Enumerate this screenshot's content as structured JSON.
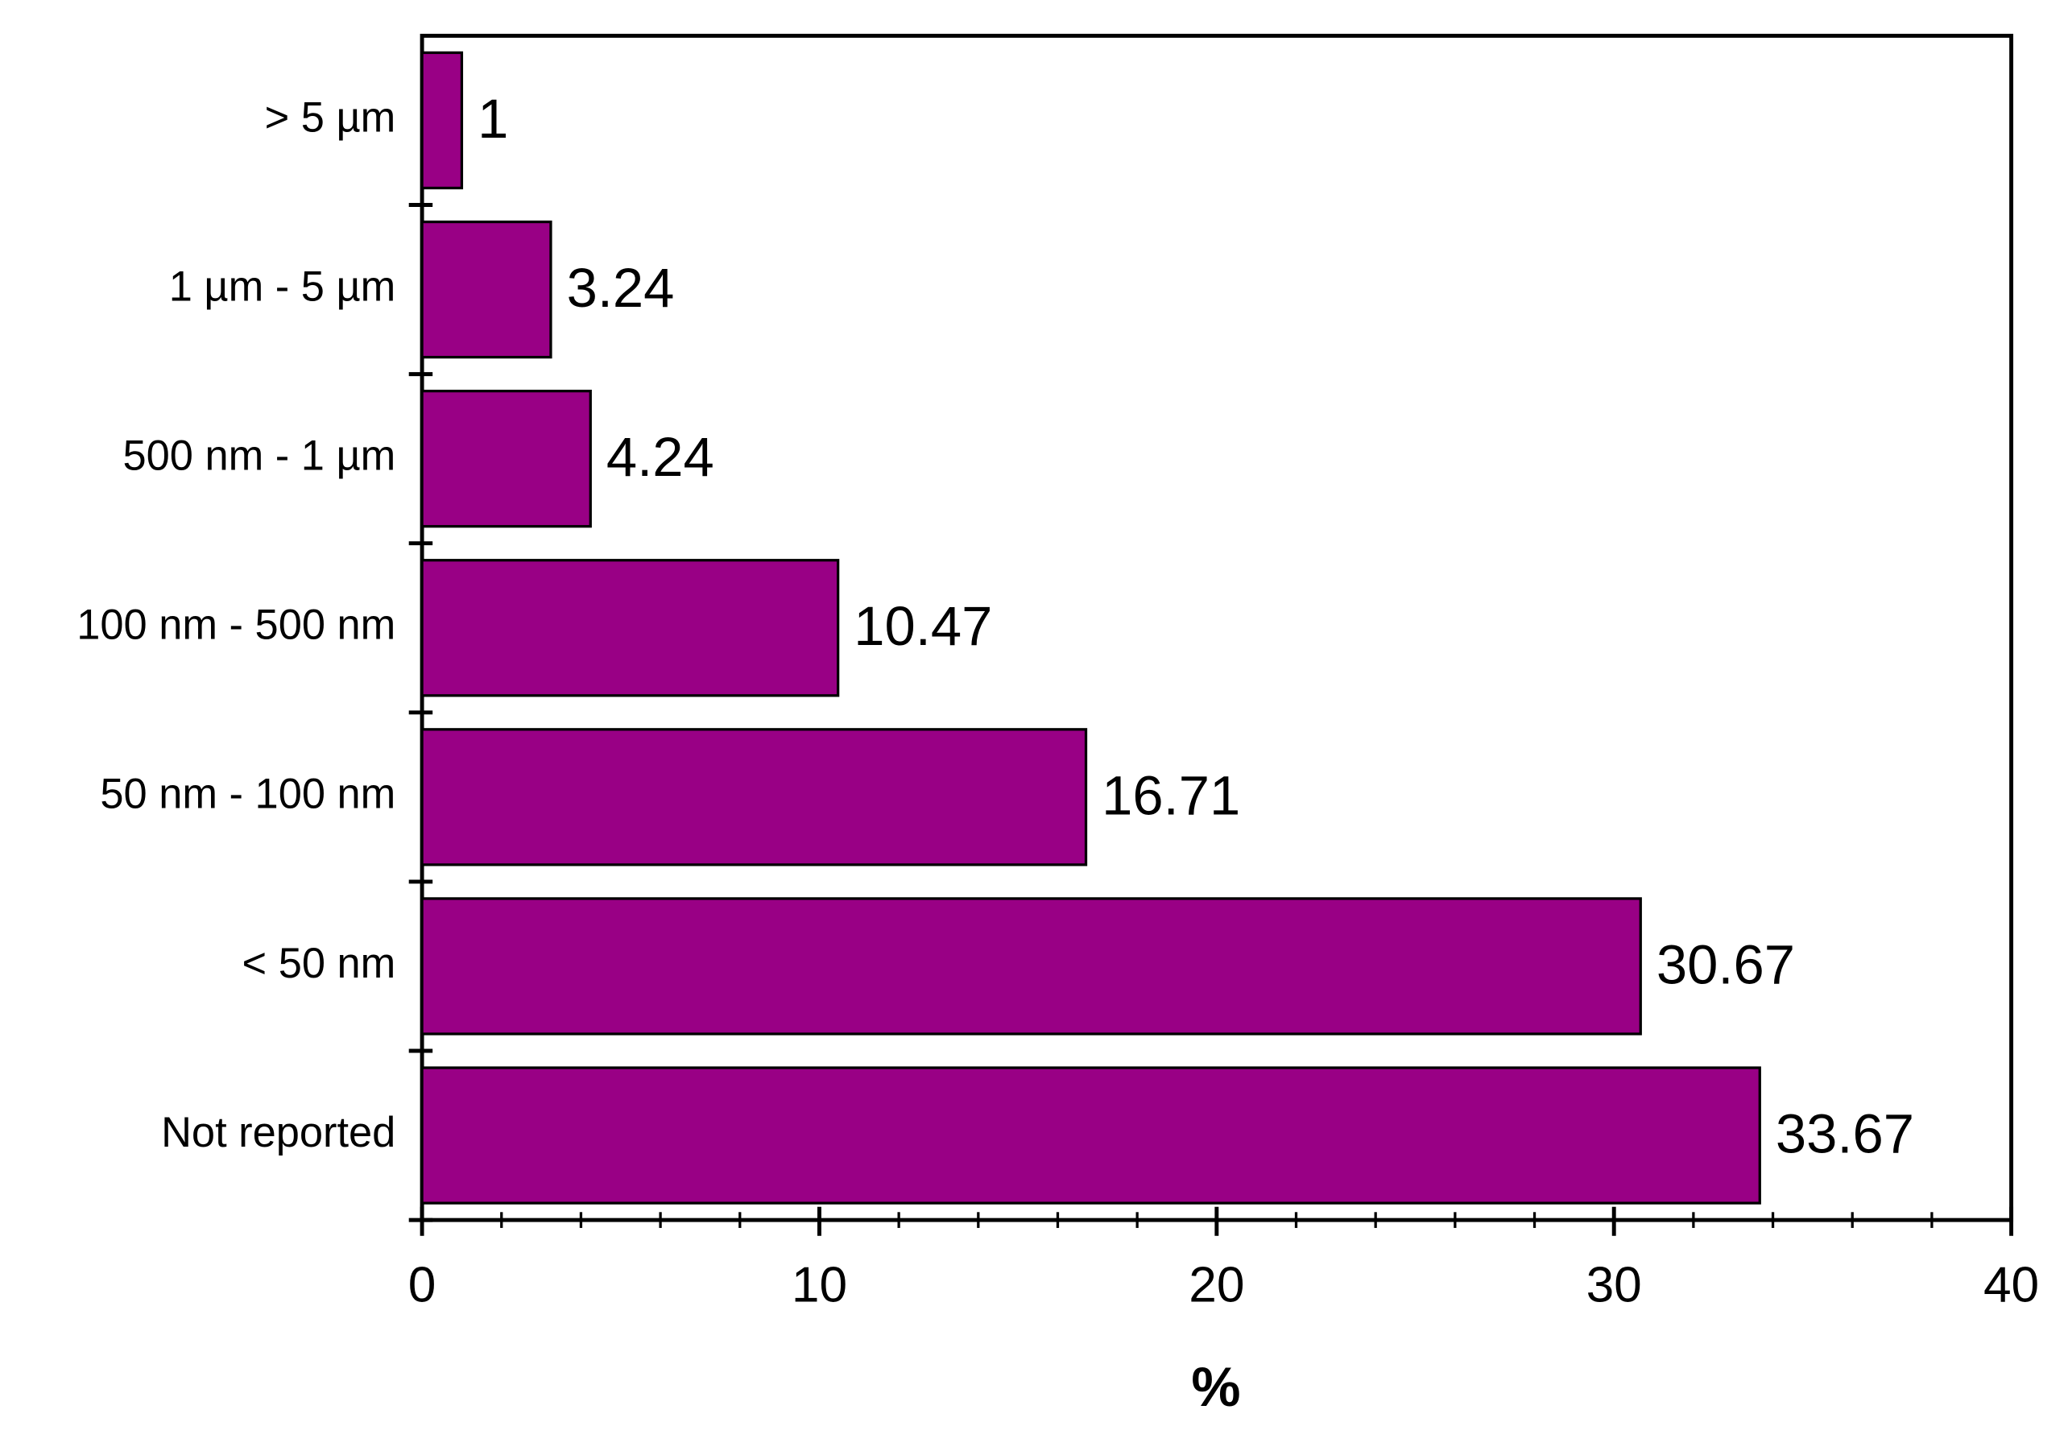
{
  "chart_data": {
    "type": "barh",
    "categories": [
      "> 5 µm",
      "1 µm - 5 µm",
      "500 nm - 1 µm",
      "100 nm - 500 nm",
      "50 nm - 100 nm",
      "< 50 nm",
      "Not reported"
    ],
    "values": [
      1,
      3.24,
      4.24,
      10.47,
      16.71,
      30.67,
      33.67
    ],
    "color": "#990085",
    "xlabel": "%",
    "xlim": [
      0,
      40
    ],
    "xticks": [
      0,
      10,
      20,
      30,
      40
    ],
    "xminor_ticks": [
      2,
      4,
      6,
      8,
      12,
      14,
      16,
      18,
      22,
      24,
      26,
      28,
      32,
      34,
      36,
      38
    ]
  }
}
